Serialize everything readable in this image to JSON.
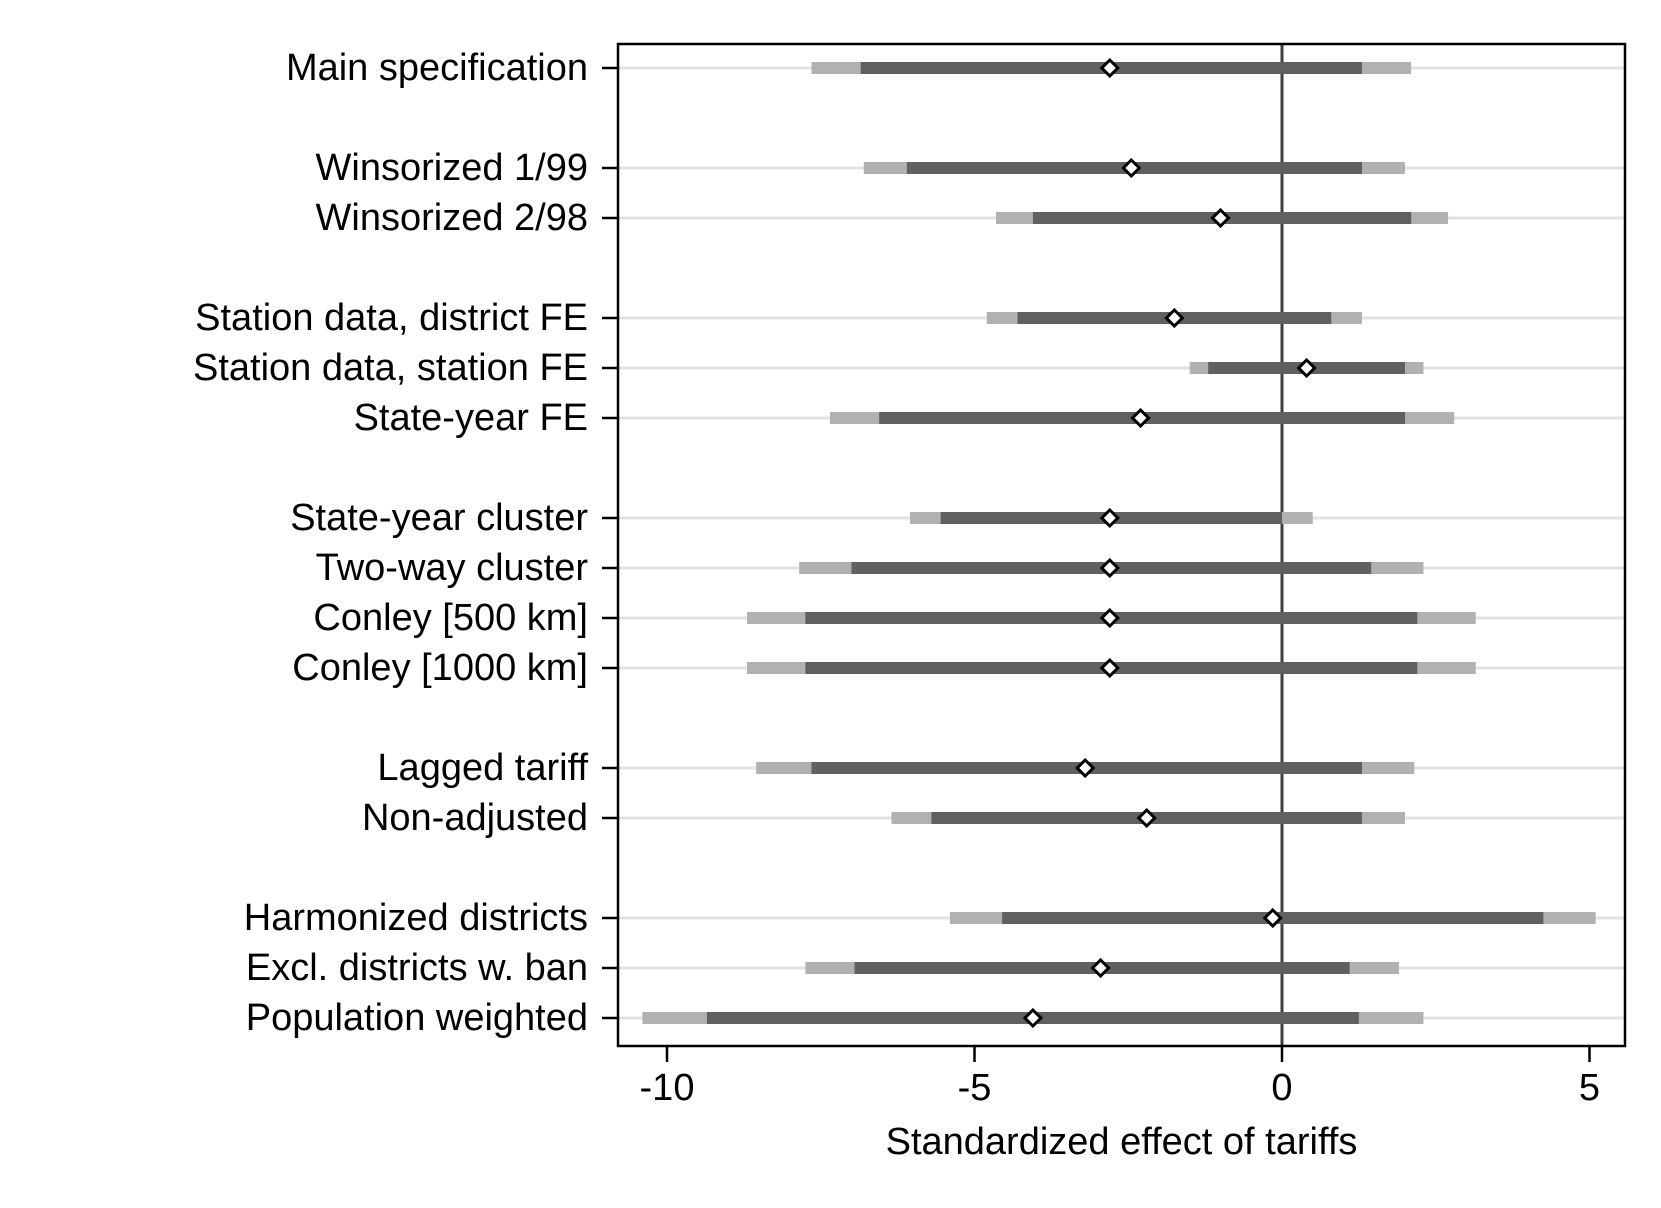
{
  "chart_data": {
    "type": "coefficient-plot",
    "title": "",
    "xlabel": "Standardized effect of tariffs",
    "ylabel": "",
    "xlim": [
      -10.8,
      5.5
    ],
    "xticks": [
      -10,
      -5,
      0,
      5
    ],
    "xtick_labels": [
      "-10",
      "-5",
      "0",
      "5"
    ],
    "reference_line": 0,
    "rows": [
      {
        "label": "Main specification",
        "group": 0,
        "estimate": -2.8,
        "ci_inner": [
          -6.85,
          1.3
        ],
        "ci_outer": [
          -7.65,
          2.1
        ]
      },
      {
        "label": "Winsorized 1/99",
        "group": 1,
        "estimate": -2.45,
        "ci_inner": [
          -6.1,
          1.3
        ],
        "ci_outer": [
          -6.8,
          2.0
        ]
      },
      {
        "label": "Winsorized 2/98",
        "group": 1,
        "estimate": -1.0,
        "ci_inner": [
          -4.05,
          2.1
        ],
        "ci_outer": [
          -4.65,
          2.7
        ]
      },
      {
        "label": "Station data, district FE",
        "group": 2,
        "estimate": -1.75,
        "ci_inner": [
          -4.3,
          0.8
        ],
        "ci_outer": [
          -4.8,
          1.3
        ]
      },
      {
        "label": "Station data, station FE",
        "group": 2,
        "estimate": 0.4,
        "ci_inner": [
          -1.2,
          2.0
        ],
        "ci_outer": [
          -1.5,
          2.3
        ]
      },
      {
        "label": "State-year FE",
        "group": 2,
        "estimate": -2.3,
        "ci_inner": [
          -6.55,
          2.0
        ],
        "ci_outer": [
          -7.35,
          2.8
        ]
      },
      {
        "label": "State-year cluster",
        "group": 3,
        "estimate": -2.8,
        "ci_inner": [
          -5.55,
          0.0
        ],
        "ci_outer": [
          -6.05,
          0.5
        ]
      },
      {
        "label": "Two-way cluster",
        "group": 3,
        "estimate": -2.8,
        "ci_inner": [
          -7.0,
          1.45
        ],
        "ci_outer": [
          -7.85,
          2.3
        ]
      },
      {
        "label": "Conley [500 km]",
        "group": 3,
        "estimate": -2.8,
        "ci_inner": [
          -7.75,
          2.2
        ],
        "ci_outer": [
          -8.7,
          3.15
        ]
      },
      {
        "label": "Conley [1000 km]",
        "group": 3,
        "estimate": -2.8,
        "ci_inner": [
          -7.75,
          2.2
        ],
        "ci_outer": [
          -8.7,
          3.15
        ]
      },
      {
        "label": "Lagged tariff",
        "group": 4,
        "estimate": -3.2,
        "ci_inner": [
          -7.65,
          1.3
        ],
        "ci_outer": [
          -8.55,
          2.15
        ]
      },
      {
        "label": "Non-adjusted",
        "group": 4,
        "estimate": -2.2,
        "ci_inner": [
          -5.7,
          1.3
        ],
        "ci_outer": [
          -6.35,
          2.0
        ]
      },
      {
        "label": "Harmonized districts",
        "group": 5,
        "estimate": -0.15,
        "ci_inner": [
          -4.55,
          4.25
        ],
        "ci_outer": [
          -5.4,
          5.1
        ]
      },
      {
        "label": "Excl. districts w. ban",
        "group": 5,
        "estimate": -2.95,
        "ci_inner": [
          -6.95,
          1.1
        ],
        "ci_outer": [
          -7.75,
          1.9
        ]
      },
      {
        "label": "Population weighted",
        "group": 5,
        "estimate": -4.05,
        "ci_inner": [
          -9.35,
          1.25
        ],
        "ci_outer": [
          -10.4,
          2.3
        ]
      }
    ]
  },
  "colors": {
    "background": "#ffffff",
    "frame": "#000000",
    "gridline": "#e2e2e2",
    "ci_inner": "#606060",
    "ci_outer": "#b1b1b1",
    "reference_line": "#404040",
    "marker_fill": "#ffffff",
    "marker_stroke": "#000000",
    "text": "#000000"
  }
}
